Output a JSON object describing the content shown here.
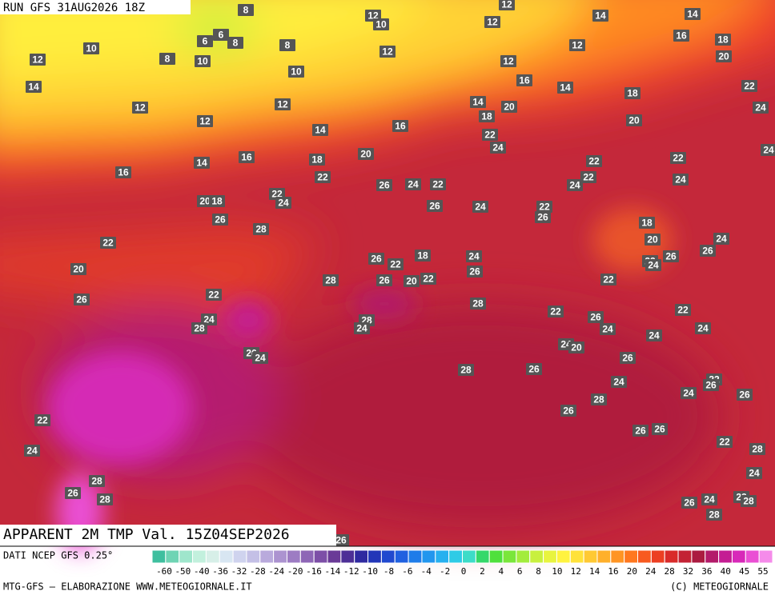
{
  "header": {
    "run": "RUN GFS 31AUG2026 18Z",
    "title": "APPARENT 2M TMP Val. 15Z04SEP2026"
  },
  "map": {
    "labels": [
      8,
      12,
      10,
      12,
      12,
      14,
      14,
      16,
      18,
      20,
      6,
      6,
      8,
      8,
      8,
      10,
      10,
      12,
      12,
      12,
      12,
      10,
      16,
      14,
      14,
      12,
      12,
      14,
      20,
      18,
      22,
      24,
      12,
      18,
      20,
      14,
      16,
      22,
      24,
      20,
      16,
      18,
      14,
      22,
      22,
      24,
      16,
      22,
      22,
      24,
      24,
      26,
      24,
      22,
      22,
      24,
      20,
      18,
      26,
      24,
      22,
      26,
      26,
      28,
      18,
      20,
      24,
      26,
      22,
      26,
      22,
      18,
      24,
      22,
      26,
      24,
      20,
      26,
      20,
      22,
      26,
      28,
      22,
      22,
      26,
      28,
      22,
      22,
      26,
      24,
      24,
      28,
      28,
      24,
      24,
      24,
      24,
      20,
      26,
      24,
      26,
      28,
      26,
      22,
      26,
      24,
      24,
      26,
      28,
      26,
      22,
      26,
      26,
      22,
      28,
      24,
      24,
      28,
      26,
      28,
      26,
      24,
      22,
      28,
      28,
      26
    ],
    "colorbar": {
      "source": "DATI NCEP GFS 0.25°",
      "ticks": [
        -60,
        -50,
        -40,
        -36,
        -32,
        -28,
        -24,
        -20,
        -16,
        -14,
        -12,
        -10,
        -8,
        -6,
        -4,
        -2,
        0,
        2,
        4,
        6,
        8,
        10,
        12,
        14,
        16,
        20,
        24,
        28,
        32,
        36,
        40,
        45,
        55
      ],
      "colors": [
        "#3fbf9f",
        "#6fd4b4",
        "#9fe6cc",
        "#c2f0dd",
        "#d7efe8",
        "#d8e6f2",
        "#cfd3ee",
        "#c4c0e6",
        "#b9aadc",
        "#ac93d0",
        "#9d7cc3",
        "#8e66b6",
        "#7d4fa7",
        "#6a3a97",
        "#4d2f96",
        "#2f2aa0",
        "#2236b8",
        "#2049cf",
        "#2060e0",
        "#1f7ce9",
        "#2296ee",
        "#27b0ef",
        "#2ecbe6",
        "#3ddcc8",
        "#35d86a",
        "#4fe03c",
        "#7ae63a",
        "#a3ec3c",
        "#c8f03e",
        "#e8f43f",
        "#fff33f",
        "#ffe23a",
        "#ffc933",
        "#ffb02b",
        "#ff9524",
        "#ff781f",
        "#f85a1f",
        "#ec3f22",
        "#d92b2a",
        "#c32234",
        "#ab1b40",
        "#b31b6a",
        "#c41d93",
        "#d829b9",
        "#ea4fd4",
        "#f58bea"
      ]
    },
    "footer": {
      "left": "MTG-GFS — ELABORAZIONE WWW.METEOGIORNALE.IT",
      "right": "(C) METEOGIORNALE"
    }
  }
}
